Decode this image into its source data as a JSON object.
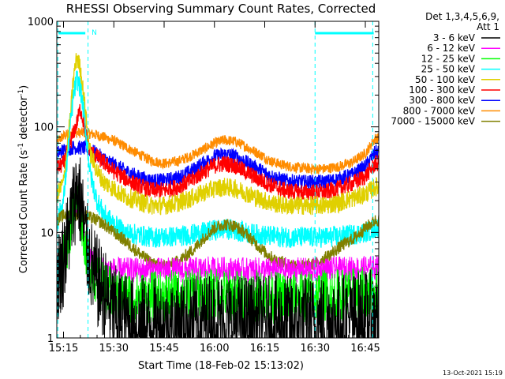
{
  "chart_data": {
    "type": "line",
    "title": "RHESSI Observing Summary Count Rates, Corrected",
    "xlabel": "Start Time (18-Feb-02 15:13:02)",
    "ylabel_main": "Corrected Count Rate (s",
    "ylabel_sup1": "-1",
    "ylabel_mid": " detector",
    "ylabel_sup2": "-1",
    "ylabel_end": ")",
    "yscale": "log",
    "ylim": [
      1,
      1000
    ],
    "xlim_min": [
      913.0,
      1009.0
    ],
    "x_ticks": [
      {
        "label": "15:15",
        "min": 915
      },
      {
        "label": "15:30",
        "min": 930
      },
      {
        "label": "15:45",
        "min": 945
      },
      {
        "label": "16:00",
        "min": 960
      },
      {
        "label": "16:15",
        "min": 975
      },
      {
        "label": "16:30",
        "min": 990
      },
      {
        "label": "16:45",
        "min": 1005
      }
    ],
    "y_ticks": [
      {
        "label": "1",
        "v": 1
      },
      {
        "label": "10",
        "v": 10
      },
      {
        "label": "100",
        "v": 100
      },
      {
        "label": "1000",
        "v": 1000
      }
    ],
    "legend": {
      "header1": "Det 1,3,4,5,6,9,",
      "header2": "Att 1",
      "entries": [
        {
          "label": "3 - 6 keV",
          "color": "#000000"
        },
        {
          "label": "6 - 12 keV",
          "color": "#ff00ff"
        },
        {
          "label": "12 - 25 keV",
          "color": "#00ff00"
        },
        {
          "label": "25 - 50 keV",
          "color": "#00ffff"
        },
        {
          "label": "50 - 100 keV",
          "color": "#e0d000"
        },
        {
          "label": "100 - 300 keV",
          "color": "#ff0000"
        },
        {
          "label": "300 - 800 keV",
          "color": "#0000ff"
        },
        {
          "label": "800 - 7000 keV",
          "color": "#ff8c00"
        },
        {
          "label": "7000 - 15000 keV",
          "color": "#808000"
        }
      ]
    },
    "series": [
      {
        "name": "800 - 7000 keV",
        "color": "#ff8c00",
        "noise": 0.05,
        "points": [
          [
            913,
            72
          ],
          [
            915,
            82
          ],
          [
            918,
            88
          ],
          [
            921,
            88
          ],
          [
            924,
            85
          ],
          [
            927,
            80
          ],
          [
            930,
            74
          ],
          [
            933,
            66
          ],
          [
            937,
            56
          ],
          [
            941,
            48
          ],
          [
            945,
            45
          ],
          [
            949,
            47
          ],
          [
            953,
            53
          ],
          [
            957,
            62
          ],
          [
            960,
            70
          ],
          [
            963,
            75
          ],
          [
            966,
            73
          ],
          [
            969,
            66
          ],
          [
            973,
            56
          ],
          [
            977,
            47
          ],
          [
            981,
            43
          ],
          [
            985,
            41
          ],
          [
            989,
            40
          ],
          [
            993,
            40
          ],
          [
            997,
            42
          ],
          [
            1001,
            46
          ],
          [
            1005,
            56
          ],
          [
            1008,
            78
          ]
        ]
      },
      {
        "name": "300 - 800 keV",
        "color": "#0000ff",
        "noise": 0.07,
        "points": [
          [
            913,
            56
          ],
          [
            915,
            60
          ],
          [
            918,
            64
          ],
          [
            921,
            63
          ],
          [
            924,
            58
          ],
          [
            927,
            50
          ],
          [
            930,
            44
          ],
          [
            933,
            39
          ],
          [
            937,
            34
          ],
          [
            941,
            31
          ],
          [
            945,
            31
          ],
          [
            949,
            33
          ],
          [
            953,
            38
          ],
          [
            957,
            46
          ],
          [
            960,
            52
          ],
          [
            963,
            55
          ],
          [
            966,
            53
          ],
          [
            969,
            47
          ],
          [
            973,
            40
          ],
          [
            977,
            34
          ],
          [
            981,
            31
          ],
          [
            985,
            30
          ],
          [
            989,
            30
          ],
          [
            993,
            30
          ],
          [
            997,
            32
          ],
          [
            1001,
            35
          ],
          [
            1005,
            42
          ],
          [
            1008,
            58
          ]
        ]
      },
      {
        "name": "100 - 300 keV",
        "color": "#ff0000",
        "noise": 0.08,
        "points": [
          [
            913,
            40
          ],
          [
            915,
            45
          ],
          [
            917,
            70
          ],
          [
            919,
            110
          ],
          [
            920,
            150
          ],
          [
            921,
            110
          ],
          [
            922,
            75
          ],
          [
            923,
            58
          ],
          [
            925,
            52
          ],
          [
            927,
            46
          ],
          [
            930,
            38
          ],
          [
            933,
            33
          ],
          [
            937,
            28
          ],
          [
            941,
            25
          ],
          [
            945,
            25
          ],
          [
            949,
            27
          ],
          [
            953,
            31
          ],
          [
            957,
            38
          ],
          [
            960,
            43
          ],
          [
            963,
            45
          ],
          [
            966,
            43
          ],
          [
            969,
            38
          ],
          [
            973,
            32
          ],
          [
            977,
            28
          ],
          [
            981,
            25
          ],
          [
            985,
            24
          ],
          [
            989,
            24
          ],
          [
            993,
            24
          ],
          [
            997,
            26
          ],
          [
            1001,
            29
          ],
          [
            1005,
            34
          ],
          [
            1008,
            45
          ]
        ]
      },
      {
        "name": "50 - 100 keV",
        "color": "#e0d000",
        "noise": 0.09,
        "points": [
          [
            913,
            22
          ],
          [
            915,
            30
          ],
          [
            917,
            120
          ],
          [
            918,
            300
          ],
          [
            919,
            460
          ],
          [
            920,
            360
          ],
          [
            921,
            200
          ],
          [
            922,
            100
          ],
          [
            923,
            55
          ],
          [
            925,
            38
          ],
          [
            927,
            30
          ],
          [
            930,
            26
          ],
          [
            933,
            22
          ],
          [
            937,
            20
          ],
          [
            941,
            18
          ],
          [
            945,
            18
          ],
          [
            949,
            19
          ],
          [
            953,
            21
          ],
          [
            957,
            24
          ],
          [
            960,
            26
          ],
          [
            963,
            27
          ],
          [
            966,
            26
          ],
          [
            969,
            24
          ],
          [
            973,
            21
          ],
          [
            977,
            19
          ],
          [
            981,
            18
          ],
          [
            985,
            18
          ],
          [
            989,
            18
          ],
          [
            993,
            18
          ],
          [
            997,
            19
          ],
          [
            1001,
            21
          ],
          [
            1005,
            23
          ],
          [
            1008,
            27
          ]
        ]
      },
      {
        "name": "25 - 50 keV",
        "color": "#00ffff",
        "noise": 0.1,
        "points": [
          [
            913,
            12
          ],
          [
            915,
            20
          ],
          [
            917,
            100
          ],
          [
            918,
            200
          ],
          [
            919,
            290
          ],
          [
            920,
            230
          ],
          [
            921,
            140
          ],
          [
            922,
            70
          ],
          [
            923,
            35
          ],
          [
            925,
            20
          ],
          [
            927,
            15
          ],
          [
            930,
            12
          ],
          [
            933,
            10
          ],
          [
            937,
            9.5
          ],
          [
            941,
            9
          ],
          [
            945,
            9
          ],
          [
            949,
            9.2
          ],
          [
            953,
            9.5
          ],
          [
            957,
            10
          ],
          [
            960,
            10.5
          ],
          [
            963,
            10.8
          ],
          [
            966,
            10.5
          ],
          [
            969,
            10
          ],
          [
            973,
            9.5
          ],
          [
            977,
            9.2
          ],
          [
            981,
            9
          ],
          [
            985,
            9
          ],
          [
            989,
            9
          ],
          [
            993,
            9
          ],
          [
            997,
            9.2
          ],
          [
            1001,
            9.5
          ],
          [
            1005,
            10
          ],
          [
            1008,
            11
          ]
        ]
      },
      {
        "name": "7000 - 15000 keV",
        "color": "#808000",
        "noise": 0.06,
        "points": [
          [
            913,
            13
          ],
          [
            915,
            14.5
          ],
          [
            918,
            15
          ],
          [
            921,
            14.5
          ],
          [
            924,
            13.5
          ],
          [
            927,
            12
          ],
          [
            930,
            10
          ],
          [
            933,
            8.5
          ],
          [
            936,
            7
          ],
          [
            939,
            5.8
          ],
          [
            942,
            5
          ],
          [
            946,
            4.8
          ],
          [
            950,
            5.5
          ],
          [
            954,
            7
          ],
          [
            957,
            9
          ],
          [
            960,
            11
          ],
          [
            963,
            12
          ],
          [
            966,
            11.5
          ],
          [
            969,
            10
          ],
          [
            972,
            8
          ],
          [
            975,
            6.5
          ],
          [
            978,
            5.5
          ],
          [
            982,
            5
          ],
          [
            986,
            4.8
          ],
          [
            990,
            5
          ],
          [
            994,
            6
          ],
          [
            998,
            7.5
          ],
          [
            1002,
            9
          ],
          [
            1005,
            11
          ],
          [
            1008,
            13
          ]
        ]
      },
      {
        "name": "6 - 12 keV",
        "color": "#ff00ff",
        "noise": 0.12,
        "points": [
          [
            913,
            4
          ],
          [
            915,
            6
          ],
          [
            917,
            12
          ],
          [
            918,
            17
          ],
          [
            919,
            20
          ],
          [
            920,
            16
          ],
          [
            921,
            10
          ],
          [
            922,
            7
          ],
          [
            924,
            5
          ],
          [
            927,
            4.5
          ],
          [
            930,
            4.4
          ],
          [
            940,
            4.4
          ],
          [
            950,
            4.4
          ],
          [
            960,
            4.5
          ],
          [
            970,
            4.4
          ],
          [
            980,
            4.4
          ],
          [
            990,
            4.4
          ],
          [
            1000,
            4.5
          ],
          [
            1008,
            4.6
          ]
        ]
      },
      {
        "name": "12 - 25 keV",
        "color": "#00ff00",
        "noise": 0.25,
        "points": [
          [
            913,
            3.5
          ],
          [
            915,
            5.5
          ],
          [
            917,
            11
          ],
          [
            918,
            17
          ],
          [
            919,
            22
          ],
          [
            920,
            17
          ],
          [
            921,
            10
          ],
          [
            922,
            6
          ],
          [
            924,
            4
          ],
          [
            927,
            3
          ],
          [
            930,
            2.5
          ],
          [
            940,
            2.4
          ],
          [
            950,
            2.5
          ],
          [
            960,
            2.6
          ],
          [
            970,
            2.5
          ],
          [
            980,
            2.4
          ],
          [
            990,
            2.5
          ],
          [
            1000,
            2.6
          ],
          [
            1008,
            2.7
          ]
        ]
      },
      {
        "name": "3 - 6 keV",
        "color": "#000000",
        "noise": 0.45,
        "points": [
          [
            913,
            3.5
          ],
          [
            915,
            5.5
          ],
          [
            917,
            12
          ],
          [
            918,
            18
          ],
          [
            919,
            26
          ],
          [
            920,
            20
          ],
          [
            921,
            12
          ],
          [
            922,
            7
          ],
          [
            924,
            4
          ],
          [
            927,
            2.6
          ],
          [
            930,
            1.8
          ],
          [
            935,
            1.4
          ],
          [
            945,
            1.3
          ],
          [
            955,
            1.4
          ],
          [
            960,
            1.5
          ],
          [
            970,
            1.4
          ],
          [
            980,
            1.4
          ],
          [
            990,
            1.4
          ],
          [
            1000,
            1.5
          ],
          [
            1008,
            1.6
          ]
        ]
      }
    ],
    "annotations": {
      "footer_date": "13-Oct-2021 15:19",
      "n_label": "N",
      "att_bars": [
        [
          913.5,
          921.5
        ],
        [
          990.0,
          1007.5
        ]
      ],
      "att_lines": [
        913.3,
        922.3,
        990.0,
        1007.2
      ]
    }
  }
}
